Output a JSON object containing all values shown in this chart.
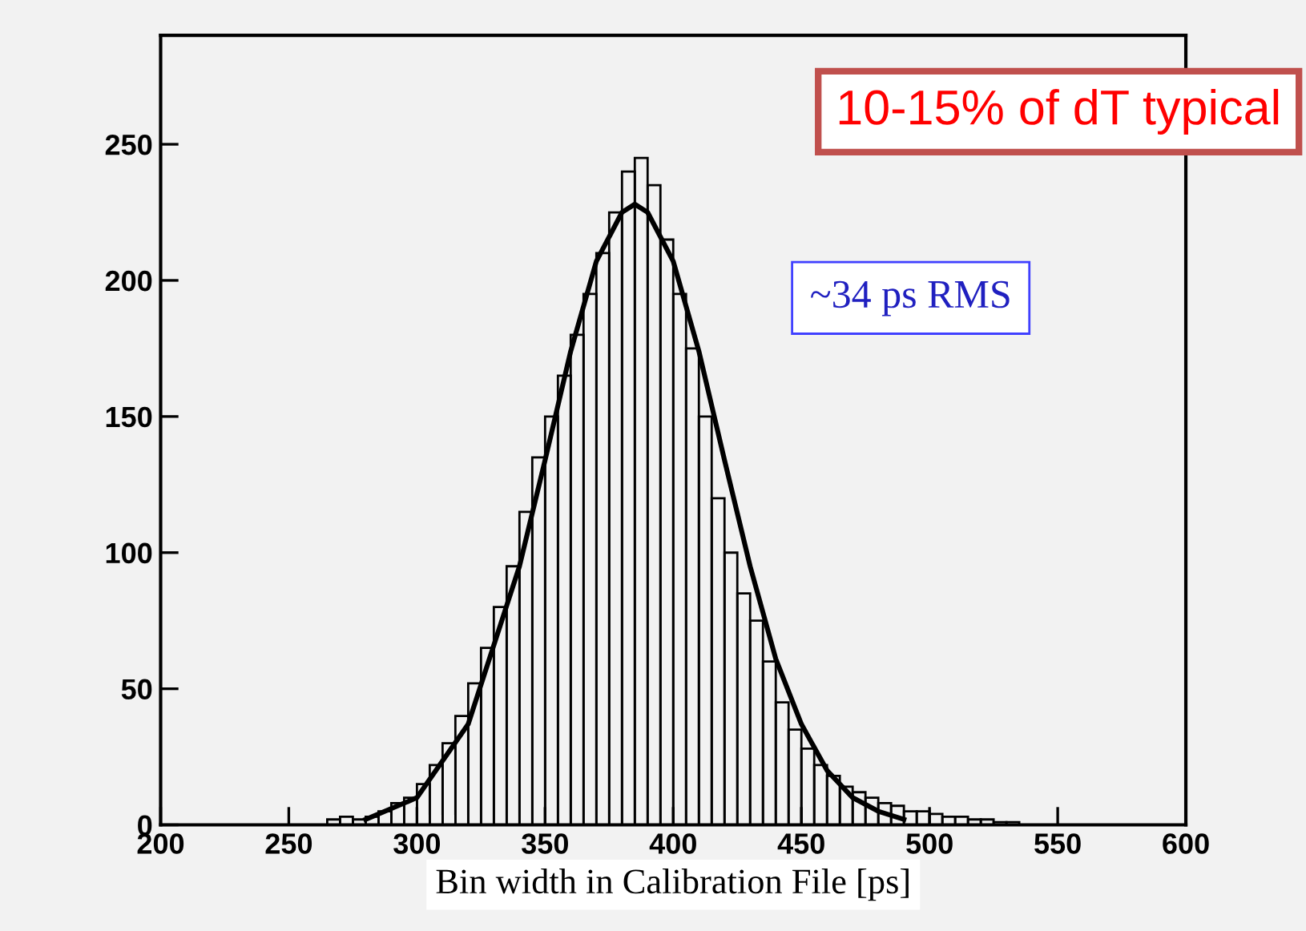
{
  "chart_data": {
    "type": "histogram",
    "xlabel": "Bin width in Calibration File [ps]",
    "annotations": [
      "10-15% of dT typical",
      "~34 ps RMS"
    ],
    "bins": [
      265,
      270,
      275,
      280,
      285,
      290,
      295,
      300,
      305,
      310,
      315,
      320,
      325,
      330,
      335,
      340,
      345,
      350,
      355,
      360,
      365,
      370,
      375,
      380,
      385,
      390,
      395,
      400,
      405,
      410,
      415,
      420,
      425,
      430,
      435,
      440,
      445,
      450,
      455,
      460,
      465,
      470,
      475,
      480,
      485,
      490,
      495,
      500,
      505,
      510,
      515,
      520,
      525,
      530,
      535
    ],
    "series": [
      {
        "color": "#000000",
        "values": [
          2,
          3,
          2,
          3,
          5,
          8,
          10,
          15,
          22,
          30,
          40,
          52,
          65,
          80,
          95,
          115,
          135,
          150,
          165,
          180,
          195,
          210,
          225,
          240,
          245,
          235,
          215,
          195,
          175,
          150,
          120,
          100,
          85,
          75,
          60,
          45,
          35,
          28,
          22,
          18,
          14,
          12,
          10,
          8,
          7,
          5,
          5,
          4,
          3,
          3,
          2,
          2,
          1,
          1
        ]
      },
      {
        "type": "line",
        "color": "#000000",
        "x": [
          280,
          300,
          320,
          340,
          350,
          360,
          370,
          380,
          385,
          390,
          400,
          410,
          420,
          430,
          440,
          450,
          460,
          470,
          480,
          490
        ],
        "values": [
          2,
          10,
          37,
          95,
          134,
          174,
          207,
          225,
          228,
          225,
          207,
          174,
          134,
          95,
          61,
          37,
          20,
          10,
          5,
          2
        ]
      }
    ],
    "xlim": [
      200,
      600
    ],
    "ylim": [
      0,
      290
    ],
    "xticks": [
      200,
      250,
      300,
      350,
      400,
      450,
      500,
      550,
      600
    ],
    "yticks": [
      0,
      50,
      100,
      150,
      200,
      250
    ],
    "grid": false,
    "legend": false
  }
}
